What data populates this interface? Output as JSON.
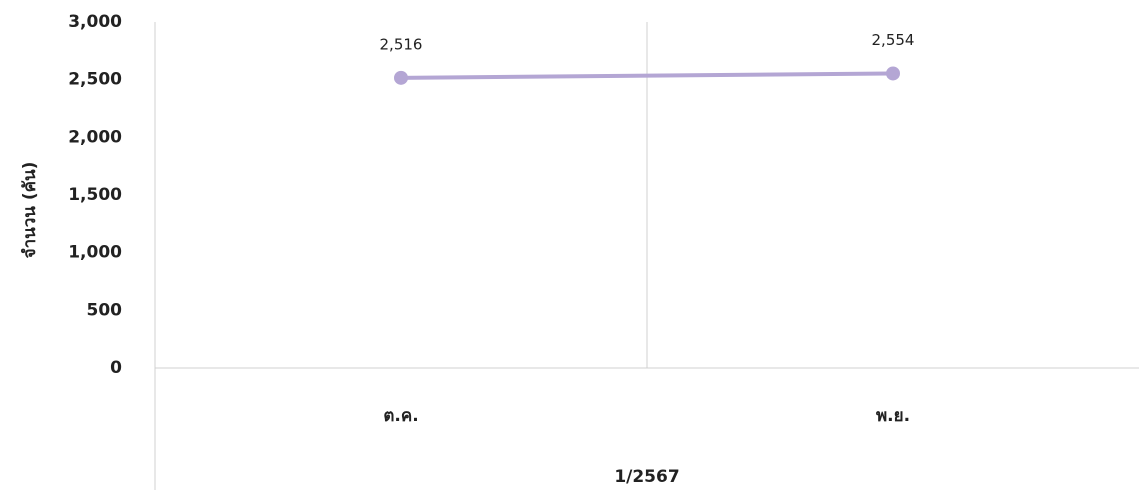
{
  "chart_data": {
    "type": "line",
    "ylabel": "จำนวน (คัน)",
    "category_group": "1/2567",
    "categories": [
      "ต.ค.",
      "พ.ย."
    ],
    "series": [
      {
        "name": "จำนวน",
        "color": "#b4a6d4",
        "values": [
          2516,
          2554
        ],
        "value_labels": [
          "2,516",
          "2,554"
        ]
      }
    ],
    "ylim": [
      0,
      3000
    ],
    "yticks": [
      0,
      500,
      {
        "value": 1000,
        "label": "1,000"
      },
      {
        "value": 1500,
        "label": "1,500"
      },
      {
        "value": 2000,
        "label": "2,000"
      },
      {
        "value": 2500,
        "label": "2,500"
      },
      {
        "value": 3000,
        "label": "3,000"
      }
    ]
  }
}
